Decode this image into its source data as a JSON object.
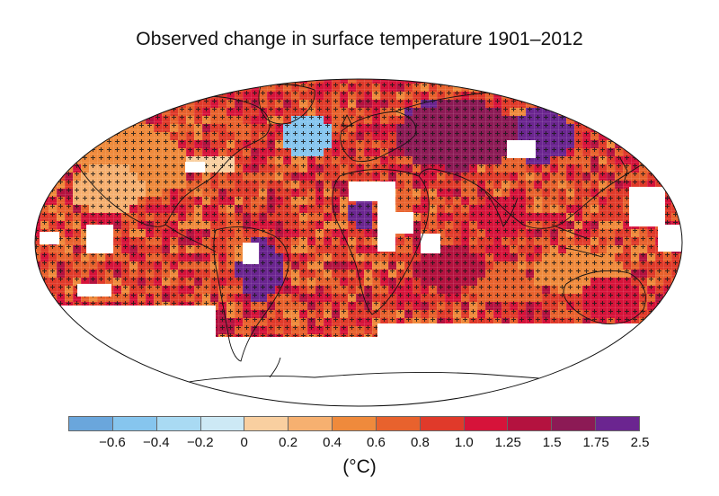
{
  "title": "Observed change in surface temperature 1901–2012",
  "legend": {
    "unit": "(°C)",
    "ticks": [
      "−0.6",
      "−0.4",
      "−0.2",
      "0",
      "0.2",
      "0.4",
      "0.6",
      "0.8",
      "1.0",
      "1.25",
      "1.5",
      "1.75",
      "2.5"
    ],
    "colors": [
      "#6aa6dc",
      "#86c5ee",
      "#a9daf3",
      "#cde9f5",
      "#f9cfa0",
      "#f6b070",
      "#ef8a3c",
      "#e8622d",
      "#e03a2a",
      "#d6133a",
      "#b4123f",
      "#8c1a55",
      "#6b2590"
    ]
  },
  "map_style": {
    "ocean_hatch": "+",
    "coastline_color": "#111111",
    "missing_data_color": "#ffffff"
  },
  "map_data": {
    "variable": "Observed change in surface temperature",
    "period": "1901–2012",
    "units": "°C",
    "dominant_range": "0.6–1.25 (orange-red)",
    "notable_regions": [
      {
        "region": "North Atlantic south of Greenland",
        "class": "−0.6 to 0"
      },
      {
        "region": "Eurasia / Siberia",
        "class": "1.5–2.5"
      },
      {
        "region": "Central South America",
        "class": "1.5–2.5"
      },
      {
        "region": "Eastern North Pacific",
        "class": "0.2–0.6"
      }
    ]
  }
}
